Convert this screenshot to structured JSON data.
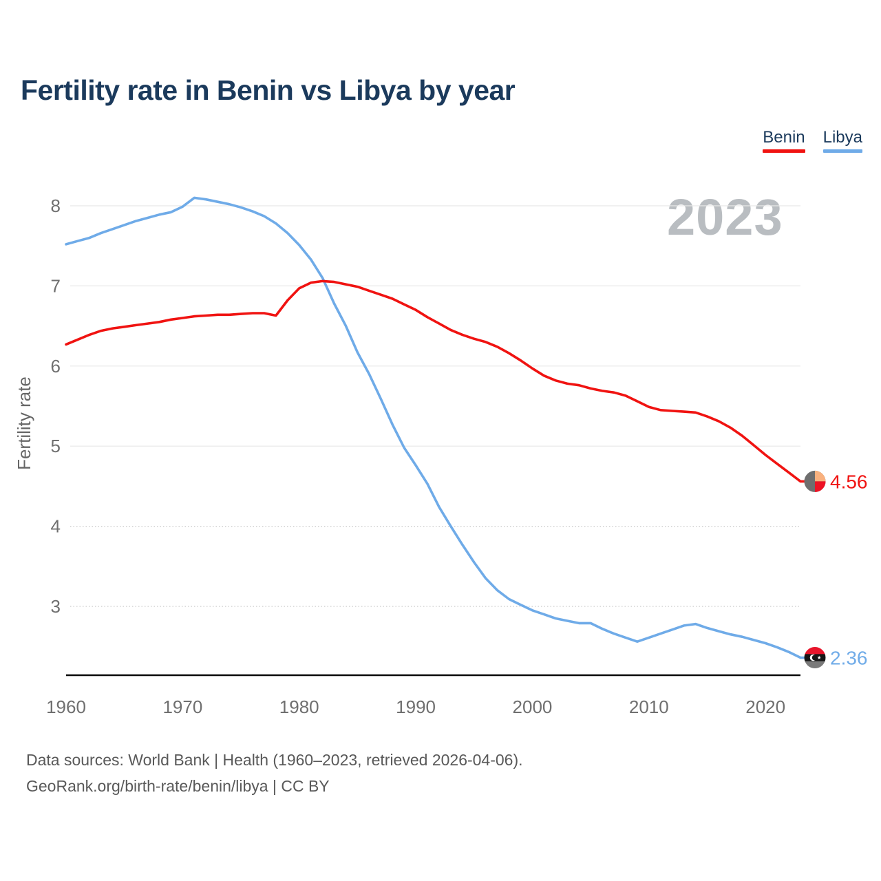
{
  "header": {
    "title": "Fertility rate in Benin vs Libya by year"
  },
  "watermark": {
    "label": "2023"
  },
  "chart_data": {
    "type": "line",
    "title": "Fertility rate in Benin vs Libya by year",
    "xlabel": "",
    "ylabel": "Fertility rate",
    "x_ticks": [
      1960,
      1970,
      1980,
      1990,
      2000,
      2010,
      2020
    ],
    "y_ticks": [
      8,
      7,
      6,
      5,
      4,
      3
    ],
    "y_grid_dotted": [
      4,
      3
    ],
    "xlim": [
      1960,
      2023
    ],
    "ylim": [
      2.15,
      8.35
    ],
    "legend_position": "top-right",
    "grid": "horizontal",
    "x": [
      1960,
      1961,
      1962,
      1963,
      1964,
      1965,
      1966,
      1967,
      1968,
      1969,
      1970,
      1971,
      1972,
      1973,
      1974,
      1975,
      1976,
      1977,
      1978,
      1979,
      1980,
      1981,
      1982,
      1983,
      1984,
      1985,
      1986,
      1987,
      1988,
      1989,
      1990,
      1991,
      1992,
      1993,
      1994,
      1995,
      1996,
      1997,
      1998,
      1999,
      2000,
      2001,
      2002,
      2003,
      2004,
      2005,
      2006,
      2007,
      2008,
      2009,
      2010,
      2011,
      2012,
      2013,
      2014,
      2015,
      2016,
      2017,
      2018,
      2019,
      2020,
      2021,
      2022,
      2023
    ],
    "series": [
      {
        "name": "Libya",
        "color": "#6fabe8",
        "end_label": "2.36",
        "values": [
          7.52,
          7.56,
          7.6,
          7.66,
          7.71,
          7.76,
          7.81,
          7.85,
          7.89,
          7.92,
          7.99,
          8.1,
          8.08,
          8.05,
          8.02,
          7.98,
          7.93,
          7.87,
          7.78,
          7.66,
          7.51,
          7.33,
          7.1,
          6.78,
          6.5,
          6.17,
          5.9,
          5.59,
          5.27,
          4.98,
          4.76,
          4.53,
          4.24,
          4.0,
          3.77,
          3.55,
          3.35,
          3.2,
          3.09,
          3.02,
          2.95,
          2.9,
          2.85,
          2.82,
          2.79,
          2.79,
          2.72,
          2.66,
          2.61,
          2.56,
          2.61,
          2.66,
          2.71,
          2.76,
          2.78,
          2.73,
          2.69,
          2.65,
          2.62,
          2.58,
          2.54,
          2.49,
          2.43,
          2.36
        ]
      },
      {
        "name": "Benin",
        "color": "#f01311",
        "end_label": "4.56",
        "values": [
          6.27,
          6.33,
          6.39,
          6.44,
          6.47,
          6.49,
          6.51,
          6.53,
          6.55,
          6.58,
          6.6,
          6.62,
          6.63,
          6.64,
          6.64,
          6.65,
          6.66,
          6.66,
          6.63,
          6.82,
          6.97,
          7.04,
          7.06,
          7.05,
          7.02,
          6.99,
          6.94,
          6.89,
          6.84,
          6.77,
          6.7,
          6.61,
          6.53,
          6.45,
          6.39,
          6.34,
          6.3,
          6.24,
          6.16,
          6.07,
          5.97,
          5.88,
          5.82,
          5.78,
          5.76,
          5.72,
          5.69,
          5.67,
          5.63,
          5.56,
          5.49,
          5.45,
          5.44,
          5.43,
          5.42,
          5.37,
          5.31,
          5.23,
          5.13,
          5.01,
          4.89,
          4.78,
          4.67,
          4.56
        ]
      }
    ]
  },
  "legend": {
    "items": [
      {
        "label": "Benin"
      },
      {
        "label": "Libya"
      }
    ]
  },
  "flags": {
    "benin": {
      "left": "#6e6e6e",
      "top_right": "#f9b17e",
      "bottom_right": "#ee1224"
    },
    "libya": {
      "top": "#e8152b",
      "middle": "#161616",
      "bottom": "#7a7a7a",
      "emblem": "#ffffff"
    }
  },
  "colors": {
    "title": "#1b3a5c",
    "axis": "#0a0a0a",
    "ticks": "#6f6f6f",
    "grid": "#e8e8e8",
    "grid_dotted": "#c9c9c9",
    "watermark": "#b9bdc1"
  },
  "footer": {
    "line1": "Data sources: World Bank | Health (1960–2023, retrieved 2026-04-06).",
    "line2": "GeoRank.org/birth-rate/benin/libya | CC BY"
  }
}
